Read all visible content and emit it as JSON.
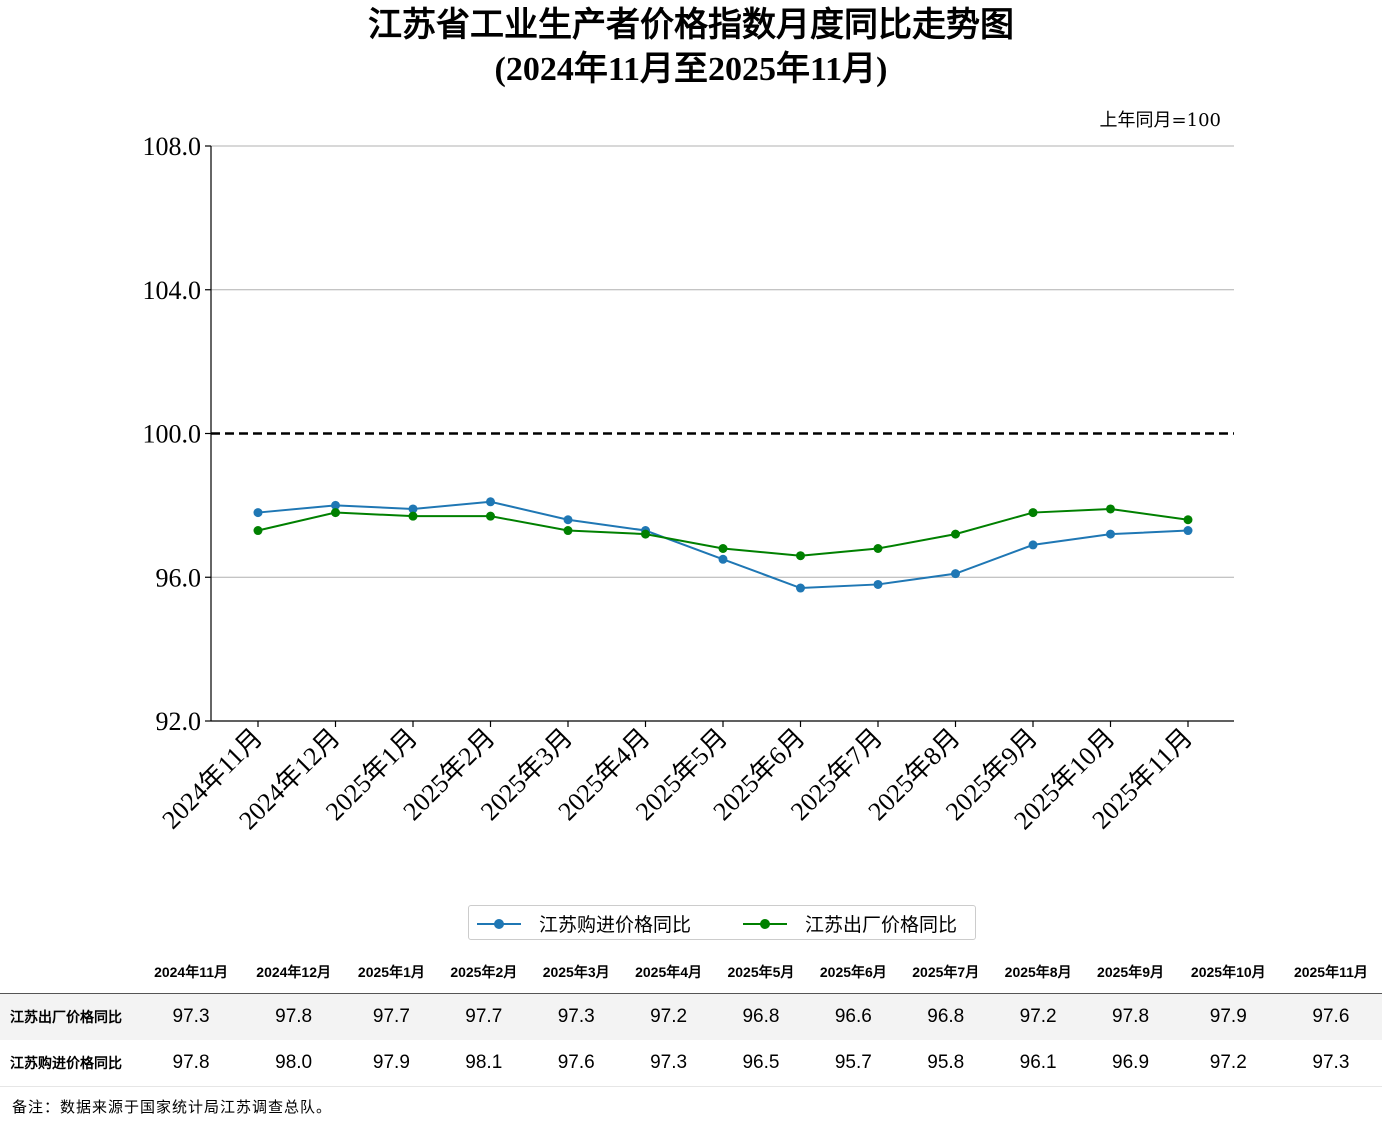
{
  "header": {
    "title_line1": "江苏省工业生产者价格指数月度同比走势图",
    "title_line2": "(2024年11月至2025年11月)",
    "unit_note": "上年同月=100"
  },
  "chart_data": {
    "type": "line",
    "title": "江苏省工业生产者价格指数月度同比走势图 (2024年11月至2025年11月)",
    "categories": [
      "2024年11月",
      "2024年12月",
      "2025年1月",
      "2025年2月",
      "2025年3月",
      "2025年4月",
      "2025年5月",
      "2025年6月",
      "2025年7月",
      "2025年8月",
      "2025年9月",
      "2025年10月",
      "2025年11月"
    ],
    "series": [
      {
        "name": "江苏购进价格同比",
        "color": "#1f77b4",
        "values": [
          97.8,
          98.0,
          97.9,
          98.1,
          97.6,
          97.3,
          96.5,
          95.7,
          95.8,
          96.1,
          96.9,
          97.2,
          97.3
        ]
      },
      {
        "name": "江苏出厂价格同比",
        "color": "#008000",
        "values": [
          97.3,
          97.8,
          97.7,
          97.7,
          97.3,
          97.2,
          96.8,
          96.6,
          96.8,
          97.2,
          97.8,
          97.9,
          97.6
        ]
      }
    ],
    "ylim": [
      92.0,
      108.0
    ],
    "yticks": [
      "92.0",
      "96.0",
      "100.0",
      "104.0",
      "108.0"
    ],
    "reference_line": 100.0,
    "grid": "horizontal",
    "legend_position": "below-chart"
  },
  "table": {
    "columns": [
      "2024年11月",
      "2024年12月",
      "2025年1月",
      "2025年2月",
      "2025年3月",
      "2025年4月",
      "2025年5月",
      "2025年6月",
      "2025年7月",
      "2025年8月",
      "2025年9月",
      "2025年10月",
      "2025年11月"
    ],
    "rows": [
      {
        "label": "江苏出厂价格同比",
        "values": [
          "97.3",
          "97.8",
          "97.7",
          "97.7",
          "97.3",
          "97.2",
          "96.8",
          "96.6",
          "96.8",
          "97.2",
          "97.8",
          "97.9",
          "97.6"
        ]
      },
      {
        "label": "江苏购进价格同比",
        "values": [
          "97.8",
          "98.0",
          "97.9",
          "98.1",
          "97.6",
          "97.3",
          "96.5",
          "95.7",
          "95.8",
          "96.1",
          "96.9",
          "97.2",
          "97.3"
        ]
      }
    ]
  },
  "footer": {
    "note": "备注：数据来源于国家统计局江苏调查总队。"
  }
}
